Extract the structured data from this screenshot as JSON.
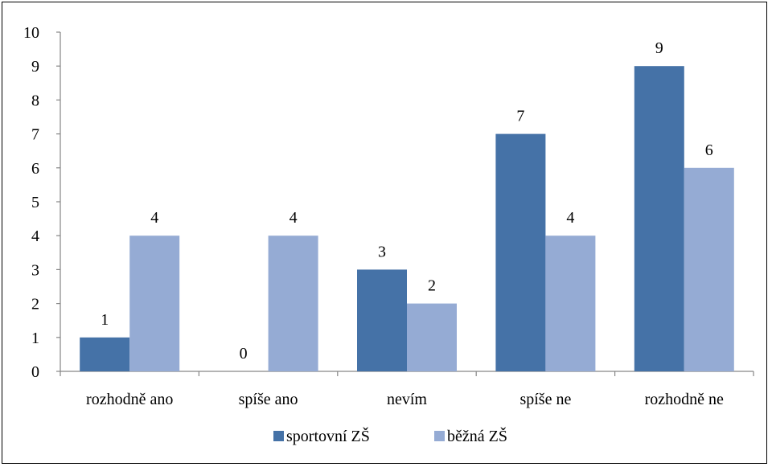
{
  "chart_data": {
    "type": "bar",
    "categories": [
      "rozhodně ano",
      "spíše ano",
      "nevím",
      "spíše ne",
      "rozhodně ne"
    ],
    "series": [
      {
        "name": "sportovní ZŠ",
        "values": [
          1,
          0,
          3,
          7,
          9
        ],
        "color": "#4572A7"
      },
      {
        "name": "běžná ZŠ",
        "values": [
          4,
          4,
          2,
          4,
          6
        ],
        "color": "#95ABD4"
      }
    ],
    "yticks": [
      "0",
      "1",
      "2",
      "3",
      "4",
      "5",
      "6",
      "7",
      "8",
      "9",
      "10"
    ],
    "ylim": [
      0,
      10
    ],
    "grid": false,
    "legend_position": "bottom",
    "data_labels": true
  }
}
